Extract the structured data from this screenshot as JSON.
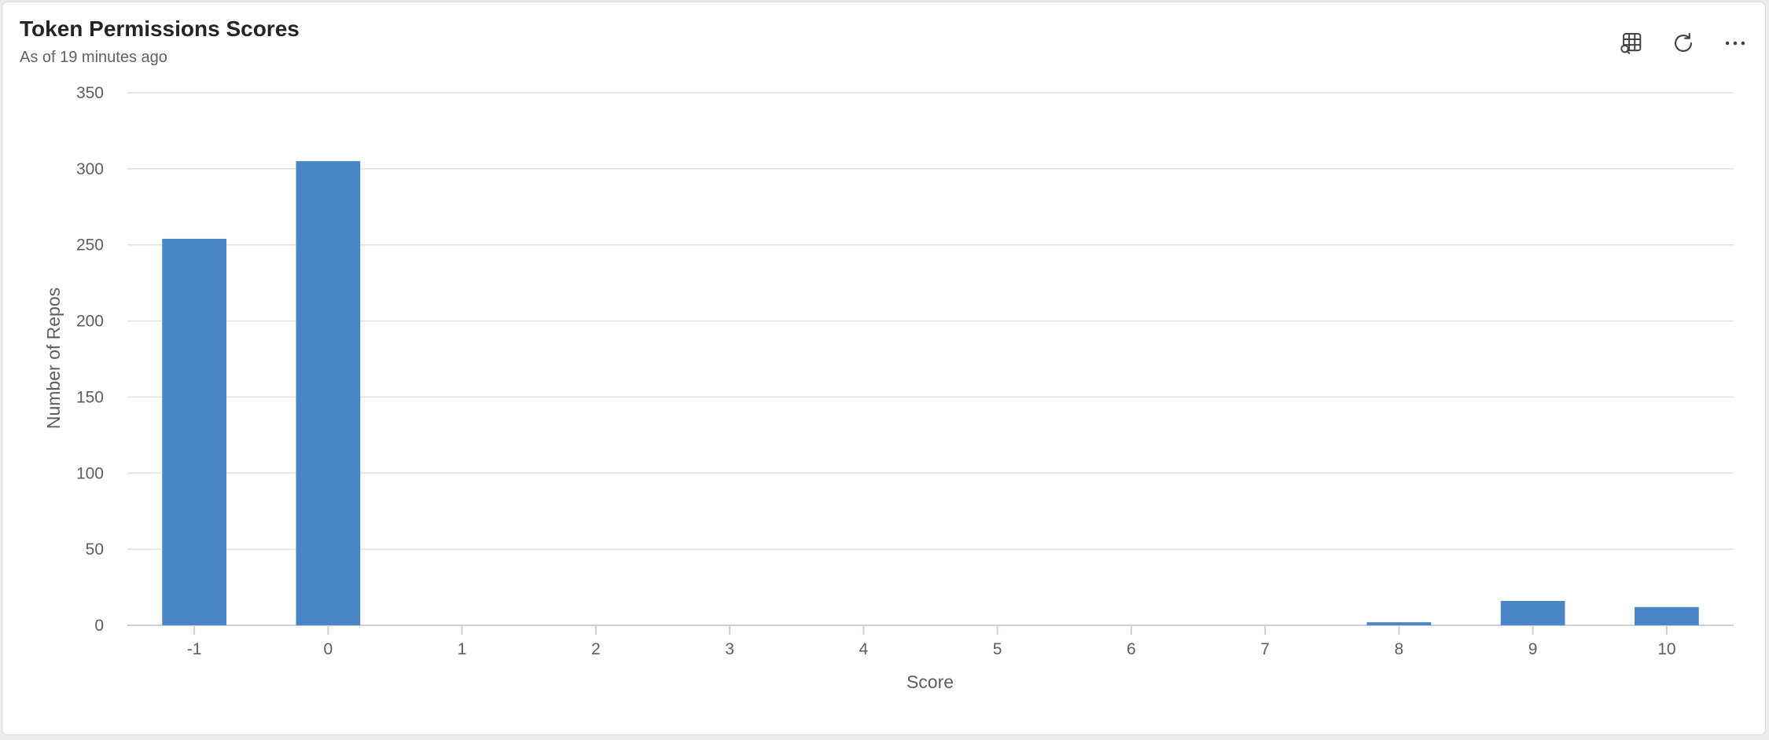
{
  "header": {
    "title": "Token Permissions Scores",
    "subtitle": "As of 19 minutes ago"
  },
  "toolbar": {
    "buttons": [
      {
        "name": "table-view-button",
        "icon": "table-search-icon"
      },
      {
        "name": "refresh-button",
        "icon": "refresh-icon"
      },
      {
        "name": "more-options-button",
        "icon": "more-horizontal-icon"
      }
    ]
  },
  "colors": {
    "bar": "#4a86c5",
    "grid": "#e1e1e1",
    "axis": "#c8d0e0",
    "text": "#605e5c"
  },
  "chart_data": {
    "type": "bar",
    "categories": [
      "-1",
      "0",
      "1",
      "2",
      "3",
      "4",
      "5",
      "6",
      "7",
      "8",
      "9",
      "10"
    ],
    "values": [
      254,
      305,
      0,
      0,
      0,
      0,
      0,
      0,
      0,
      2,
      16,
      12
    ],
    "xlabel": "Score",
    "ylabel": "Number of Repos",
    "ylim": [
      0,
      350
    ],
    "yticks": [
      0,
      50,
      100,
      150,
      200,
      250,
      300,
      350
    ],
    "grid": true,
    "legend": "none"
  }
}
